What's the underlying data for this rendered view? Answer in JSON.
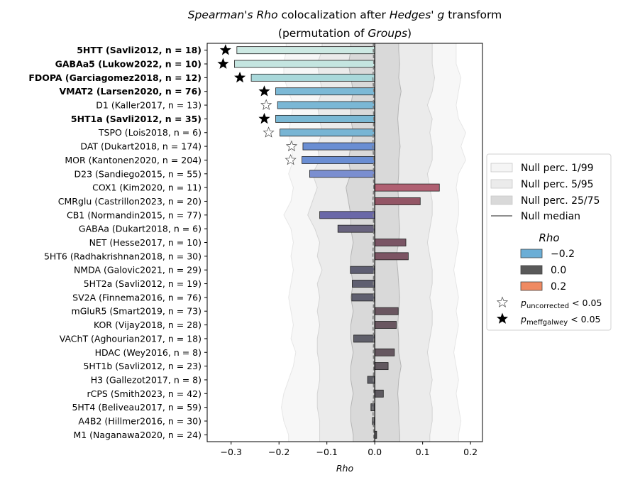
{
  "chart_data": {
    "type": "bar",
    "orientation": "horizontal",
    "title_parts": [
      {
        "text": "Spearman's Rho",
        "italic": true
      },
      {
        "text": " colocalization after ",
        "italic": false
      },
      {
        "text": "Hedges' g",
        "italic": true
      },
      {
        "text": " transform",
        "italic": false
      }
    ],
    "subtitle_parts": [
      {
        "text": "(permutation of ",
        "italic": false
      },
      {
        "text": "Groups",
        "italic": true
      },
      {
        "text": ")",
        "italic": false
      }
    ],
    "xlabel": "Rho",
    "xlim": [
      -0.35,
      0.225
    ],
    "xticks": [
      -0.3,
      -0.2,
      -0.1,
      0.0,
      0.1,
      0.2
    ],
    "xtick_labels": [
      "−0.3",
      "−0.2",
      "−0.1",
      "0.0",
      "0.1",
      "0.2"
    ],
    "categories": [
      "5HTT (Savli2012, n = 18)",
      "GABAa5 (Lukow2022, n = 10)",
      "FDOPA (Garciagomez2018, n = 12)",
      "VMAT2 (Larsen2020, n = 76)",
      "D1 (Kaller2017, n = 13)",
      "5HT1a (Savli2012, n = 35)",
      "TSPO (Lois2018, n = 6)",
      "DAT (Dukart2018, n = 174)",
      "MOR (Kantonen2020, n = 204)",
      "D23 (Sandiego2015, n = 55)",
      "COX1 (Kim2020, n = 11)",
      "CMRglu (Castrillon2023, n = 20)",
      "CB1 (Normandin2015, n = 77)",
      "GABAa (Dukart2018, n = 6)",
      "NET (Hesse2017, n = 10)",
      "5HT6 (Radhakrishnan2018, n = 30)",
      "NMDA (Galovic2021, n = 29)",
      "5HT2a (Savli2012, n = 19)",
      "SV2A (Finnema2016, n = 76)",
      "mGluR5 (Smart2019, n = 73)",
      "KOR (Vijay2018, n = 28)",
      "VAChT (Aghourian2017, n = 18)",
      "HDAC (Wey2016, n = 8)",
      "5HT1b (Savli2012, n = 23)",
      "H3 (Gallezot2017, n = 8)",
      "rCPS (Smith2023, n = 42)",
      "5HT4 (Beliveau2017, n = 59)",
      "A4B2 (Hillmer2016, n = 30)",
      "M1 (Naganawa2020, n = 24)"
    ],
    "values": [
      -0.288,
      -0.293,
      -0.258,
      -0.207,
      -0.203,
      -0.207,
      -0.198,
      -0.15,
      -0.152,
      -0.136,
      0.135,
      0.095,
      -0.115,
      -0.077,
      0.065,
      0.07,
      -0.051,
      -0.047,
      -0.048,
      0.049,
      0.045,
      -0.044,
      0.041,
      0.028,
      -0.015,
      0.018,
      -0.008,
      -0.005,
      0.004
    ],
    "bold": [
      true,
      true,
      true,
      true,
      false,
      true,
      false,
      false,
      false,
      false,
      false,
      false,
      false,
      false,
      false,
      false,
      false,
      false,
      false,
      false,
      false,
      false,
      false,
      false,
      false,
      false,
      false,
      false,
      false
    ],
    "markers": [
      "filled",
      "filled",
      "filled",
      "filled",
      "open",
      "filled",
      "open",
      "open",
      "open",
      "none",
      "none",
      "none",
      "none",
      "none",
      "none",
      "none",
      "none",
      "none",
      "none",
      "none",
      "none",
      "none",
      "none",
      "none",
      "none",
      "none",
      "none",
      "none",
      "none"
    ],
    "bar_colors": [
      "#cde9e3",
      "#c4e5e0",
      "#a9d8da",
      "#7cb9d6",
      "#7ab7d5",
      "#7ab8d4",
      "#78b5d4",
      "#6a8ed3",
      "#6a8ed3",
      "#7a8ed0",
      "#b06072",
      "#935565",
      "#6a68a8",
      "#68637e",
      "#7a5565",
      "#7c5463",
      "#5e5e72",
      "#5f5f70",
      "#5f5f6f",
      "#6a5660",
      "#695660",
      "#5f5f6a",
      "#655760",
      "#625960",
      "#5d5d64",
      "#5e5a60",
      "#5d5d63",
      "#5d5d62",
      "#5c5b5f"
    ],
    "null_bands": {
      "p01": [
        -0.185,
        -0.19,
        -0.19,
        -0.18,
        -0.17,
        -0.175,
        -0.18,
        -0.175,
        -0.17,
        -0.18,
        -0.17,
        -0.175,
        -0.19,
        -0.175,
        -0.17,
        -0.175,
        -0.17,
        -0.175,
        -0.18,
        -0.175,
        -0.17,
        -0.175,
        -0.165,
        -0.17,
        -0.18,
        -0.19,
        -0.195,
        -0.19,
        -0.18
      ],
      "p05": [
        -0.11,
        -0.12,
        -0.115,
        -0.11,
        -0.12,
        -0.115,
        -0.11,
        -0.12,
        -0.115,
        -0.13,
        -0.12,
        -0.13,
        -0.14,
        -0.125,
        -0.115,
        -0.12,
        -0.11,
        -0.12,
        -0.115,
        -0.12,
        -0.115,
        -0.12,
        -0.12,
        -0.115,
        -0.115,
        -0.12,
        -0.12,
        -0.115,
        -0.115
      ],
      "p25": [
        -0.05,
        -0.055,
        -0.05,
        -0.045,
        -0.05,
        -0.05,
        -0.045,
        -0.05,
        -0.055,
        -0.05,
        -0.06,
        -0.055,
        -0.05,
        -0.05,
        -0.045,
        -0.05,
        -0.05,
        -0.045,
        -0.05,
        -0.045,
        -0.05,
        -0.05,
        -0.045,
        -0.05,
        -0.05,
        -0.045,
        -0.05,
        -0.05,
        -0.045
      ],
      "p50": [
        -0.003,
        -0.002,
        -0.004,
        -0.002,
        -0.003,
        -0.002,
        -0.003,
        -0.004,
        -0.002,
        -0.003,
        -0.002,
        -0.004,
        -0.003,
        -0.002,
        -0.003,
        -0.004,
        -0.002,
        -0.003,
        -0.002,
        -0.003,
        -0.004,
        -0.002,
        -0.003,
        -0.002,
        -0.003,
        -0.002,
        -0.004,
        -0.003,
        -0.002
      ],
      "p75": [
        0.05,
        0.052,
        0.05,
        0.055,
        0.05,
        0.048,
        0.05,
        0.053,
        0.05,
        0.05,
        0.048,
        0.05,
        0.05,
        0.052,
        0.05,
        0.045,
        0.048,
        0.05,
        0.052,
        0.05,
        0.048,
        0.05,
        0.05,
        0.055,
        0.05,
        0.048,
        0.05,
        0.05,
        0.052
      ],
      "p95": [
        0.12,
        0.12,
        0.125,
        0.12,
        0.11,
        0.12,
        0.115,
        0.12,
        0.12,
        0.11,
        0.115,
        0.12,
        0.12,
        0.115,
        0.11,
        0.115,
        0.12,
        0.12,
        0.115,
        0.12,
        0.12,
        0.115,
        0.11,
        0.115,
        0.12,
        0.115,
        0.12,
        0.12,
        0.115
      ],
      "p99": [
        0.17,
        0.17,
        0.18,
        0.175,
        0.17,
        0.175,
        0.19,
        0.18,
        0.19,
        0.175,
        0.17,
        0.175,
        0.175,
        0.17,
        0.175,
        0.17,
        0.165,
        0.17,
        0.175,
        0.17,
        0.175,
        0.17,
        0.165,
        0.17,
        0.175,
        0.17,
        0.175,
        0.18,
        0.175
      ]
    },
    "null_colors": {
      "p01_99": "#f7f7f7",
      "p05_95": "#ebebeb",
      "p25_75": "#d9d9d9",
      "median": "#808080"
    },
    "legend": {
      "items": [
        {
          "label": "Null perc. 1/99",
          "kind": "patch",
          "color": "#f5f5f5"
        },
        {
          "label": "Null perc. 5/95",
          "kind": "patch",
          "color": "#ebebeb"
        },
        {
          "label": "Null perc. 25/75",
          "kind": "patch",
          "color": "#d9d9d9"
        },
        {
          "label": "Null median",
          "kind": "line",
          "color": "#808080"
        }
      ],
      "cmap_title": "Rho",
      "cmap_items": [
        {
          "label": "−0.2",
          "color": "#6baed6"
        },
        {
          "label": "0.0",
          "color": "#595959"
        },
        {
          "label": "0.2",
          "color": "#ef8a62"
        }
      ],
      "marker_items": [
        {
          "kind": "open",
          "label_main": "p",
          "label_sub": "uncorrected",
          "label_rest": " < 0.05"
        },
        {
          "kind": "filled",
          "label_main": "p",
          "label_sub": "meffgalwey",
          "label_rest": " < 0.05"
        }
      ],
      "placement": "center-right-outside"
    }
  }
}
